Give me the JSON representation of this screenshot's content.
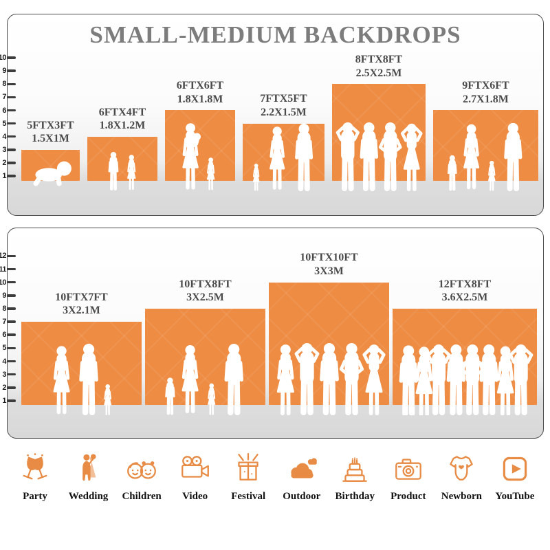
{
  "title": "SMALL-MEDIUM BACKDROPS",
  "colors": {
    "backdrop_orange": "#EE8C43",
    "icon_orange": "#E78B45",
    "title_gray": "#7C7C7C"
  },
  "panels": [
    {
      "name": "small-medium-backdrops-top",
      "scale": [
        "1",
        "2",
        "3",
        "4",
        "5",
        "6",
        "7",
        "8",
        "9",
        "10"
      ],
      "items": [
        {
          "size_ft": "5FTX3FT",
          "size_m": "1.5X1M",
          "width_ft": 5,
          "height_ft": 3,
          "people": "crawling-baby"
        },
        {
          "size_ft": "6FTX4FT",
          "size_m": "1.8X1.2M",
          "width_ft": 6,
          "height_ft": 4,
          "people": "boy-and-girl"
        },
        {
          "size_ft": "6FTX6FT",
          "size_m": "1.8X1.8M",
          "width_ft": 6,
          "height_ft": 6,
          "people": "mother-holding-baby-with-girl"
        },
        {
          "size_ft": "7FTX5FT",
          "size_m": "2.2X1.5M",
          "width_ft": 7,
          "height_ft": 5,
          "people": "family-of-three"
        },
        {
          "size_ft": "8FTX8FT",
          "size_m": "2.5X2.5M",
          "width_ft": 8,
          "height_ft": 8,
          "people": "group-of-four-adults"
        },
        {
          "size_ft": "9FTX6FT",
          "size_m": "2.7X1.8M",
          "width_ft": 9,
          "height_ft": 6,
          "people": "family-of-four-walking"
        }
      ]
    },
    {
      "name": "small-medium-backdrops-bottom",
      "scale": [
        "1",
        "2",
        "3",
        "4",
        "5",
        "6",
        "7",
        "8",
        "9",
        "10",
        "11",
        "12"
      ],
      "items": [
        {
          "size_ft": "10FTX7FT",
          "size_m": "3X2.1M",
          "width_ft": 10,
          "height_ft": 7,
          "people": "family-of-three"
        },
        {
          "size_ft": "10FTX8FT",
          "size_m": "3X2.5M",
          "width_ft": 10,
          "height_ft": 8,
          "people": "family-of-four-walking"
        },
        {
          "size_ft": "10FTX10FT",
          "size_m": "3X3M",
          "width_ft": 10,
          "height_ft": 10,
          "people": "group-of-five-adults"
        },
        {
          "size_ft": "12FTX8FT",
          "size_m": "3.6X2.5M",
          "width_ft": 12,
          "height_ft": 8,
          "people": "group-of-eight-adults"
        }
      ]
    }
  ],
  "categories": [
    {
      "label": "Party",
      "icon": "party-glasses-icon"
    },
    {
      "label": "Wedding",
      "icon": "wedding-couple-icon"
    },
    {
      "label": "Children",
      "icon": "children-faces-icon"
    },
    {
      "label": "Video",
      "icon": "video-camera-icon"
    },
    {
      "label": "Festival",
      "icon": "festival-gift-icon"
    },
    {
      "label": "Outdoor",
      "icon": "outdoor-cloud-icon"
    },
    {
      "label": "Birthday",
      "icon": "birthday-cake-icon"
    },
    {
      "label": "Product",
      "icon": "product-camera-icon"
    },
    {
      "label": "Newborn",
      "icon": "newborn-onesie-icon"
    },
    {
      "label": "YouTube",
      "icon": "youtube-play-icon"
    }
  ]
}
